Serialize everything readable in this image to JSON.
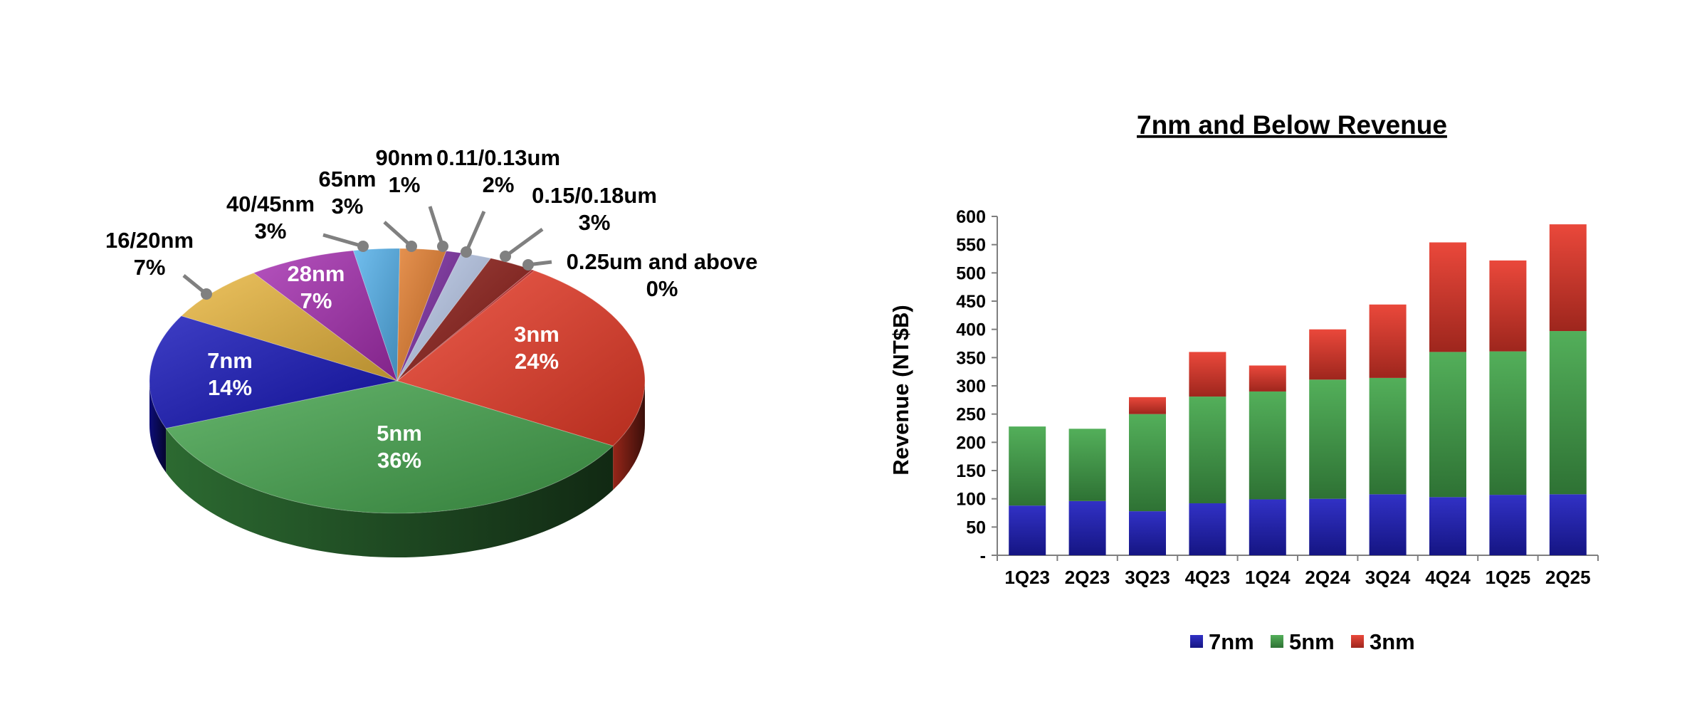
{
  "chart_data": [
    {
      "type": "pie",
      "title": "",
      "slices": [
        {
          "label": "3nm",
          "pct_label": "24%",
          "value": 24,
          "color": "#e83a26",
          "label_inside": true
        },
        {
          "label": "5nm",
          "pct_label": "36%",
          "value": 36,
          "color": "#43a34c",
          "label_inside": true
        },
        {
          "label": "7nm",
          "pct_label": "14%",
          "value": 14,
          "color": "#1414b8",
          "label_inside": true
        },
        {
          "label": "16/20nm",
          "pct_label": "7%",
          "value": 7,
          "color": "#e8b53c",
          "label_inside": false
        },
        {
          "label": "28nm",
          "pct_label": "7%",
          "value": 7,
          "color": "#a52db0",
          "label_inside": true
        },
        {
          "label": "40/45nm",
          "pct_label": "3%",
          "value": 3,
          "color": "#52b0ea",
          "label_inside": false
        },
        {
          "label": "65nm",
          "pct_label": "3%",
          "value": 3,
          "color": "#e07a2a",
          "label_inside": false
        },
        {
          "label": "90nm",
          "pct_label": "1%",
          "value": 1,
          "color": "#7a2aa0",
          "label_inside": false
        },
        {
          "label": "0.11/0.13um",
          "pct_label": "2%",
          "value": 2,
          "color": "#b8c8e8",
          "label_inside": false
        },
        {
          "label": "0.15/0.18um",
          "pct_label": "3%",
          "value": 3,
          "color": "#8a1a14",
          "label_inside": false
        },
        {
          "label": "0.25um and above",
          "pct_label": "0%",
          "value": 0,
          "color": "#c02020",
          "label_inside": false
        }
      ]
    },
    {
      "type": "bar",
      "stacked": true,
      "title": "7nm and Below Revenue",
      "xlabel": "",
      "ylabel": "Revenue (NT$B)",
      "ylim": [
        0,
        600
      ],
      "yticks": [
        "-",
        "50",
        "100",
        "150",
        "200",
        "250",
        "300",
        "350",
        "400",
        "450",
        "500",
        "550",
        "600"
      ],
      "categories": [
        "1Q23",
        "2Q23",
        "3Q23",
        "4Q23",
        "1Q24",
        "2Q24",
        "3Q24",
        "4Q24",
        "1Q25",
        "2Q25"
      ],
      "series": [
        {
          "name": "7nm",
          "color": "#1f1fc0",
          "values": [
            88,
            96,
            78,
            92,
            99,
            100,
            108,
            103,
            107,
            108
          ]
        },
        {
          "name": "5nm",
          "color": "#44a84c",
          "values": [
            140,
            128,
            172,
            189,
            191,
            211,
            206,
            257,
            254,
            289
          ]
        },
        {
          "name": "3nm",
          "color": "#e8382a",
          "values": [
            0,
            0,
            30,
            79,
            46,
            89,
            130,
            194,
            161,
            189
          ]
        }
      ],
      "legend_position": "bottom",
      "grid": false
    }
  ]
}
